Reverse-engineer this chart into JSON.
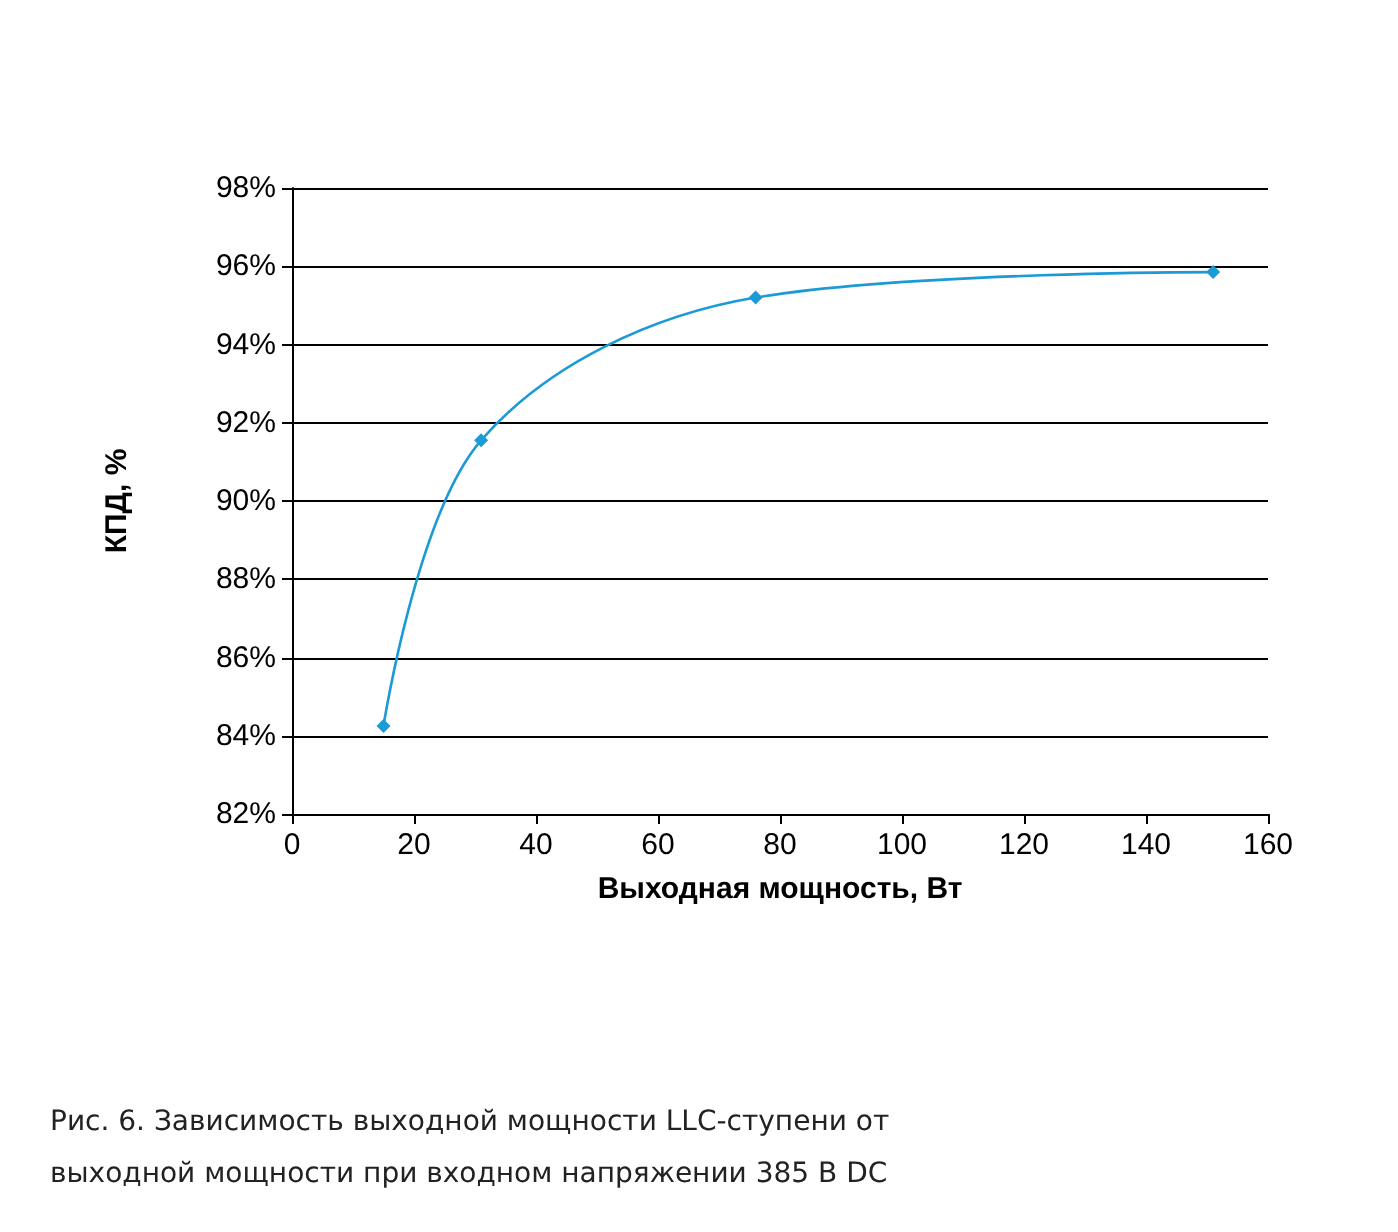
{
  "chart_data": {
    "type": "line",
    "xlabel": "Выходная мощность, Вт",
    "ylabel": "КПД, %",
    "x": [
      15,
      31,
      76,
      151
    ],
    "series": [
      {
        "color": "#1b9ad6",
        "values": [
          84.25,
          91.55,
          95.2,
          95.85
        ]
      }
    ],
    "xlim": [
      0,
      160
    ],
    "xticks": [
      0,
      20,
      40,
      60,
      80,
      100,
      120,
      140,
      160
    ],
    "ylim": [
      82,
      98
    ],
    "yticks": [
      {
        "value": 82,
        "label": "82%"
      },
      {
        "value": 84,
        "label": "84%"
      },
      {
        "value": 86,
        "label": "86%"
      },
      {
        "value": 88,
        "label": "88%"
      },
      {
        "value": 90,
        "label": "90%"
      },
      {
        "value": 92,
        "label": "92%"
      },
      {
        "value": 94,
        "label": "94%"
      },
      {
        "value": 96,
        "label": "96%"
      },
      {
        "value": 98,
        "label": "98%"
      }
    ],
    "grid": "y",
    "marker": "diamond",
    "line_style": "solid",
    "annotations": [
      "Рис. 6. Зависимость выходной мощности LLC-ступени от выходной мощности при входном напряжении 385 В DC"
    ]
  }
}
